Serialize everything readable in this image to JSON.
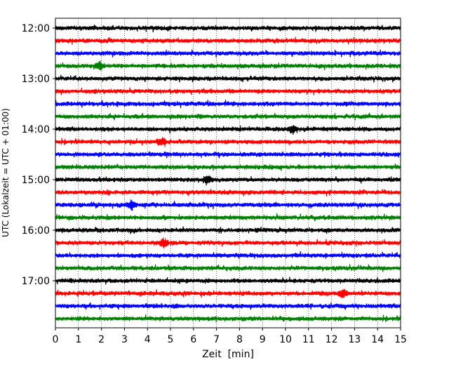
{
  "chart_data": {
    "type": "line",
    "chart_kind": "helicorder seismogram",
    "xlabel": "Zeit  [min]",
    "ylabel": "UTC (Lokalzeit = UTC + 01:00)",
    "xlim": [
      0,
      15
    ],
    "x_ticks": [
      0,
      1,
      2,
      3,
      4,
      5,
      6,
      7,
      8,
      9,
      10,
      11,
      12,
      13,
      14,
      15
    ],
    "x_tick_labels": [
      "0",
      "1",
      "2",
      "3",
      "4",
      "5",
      "6",
      "7",
      "8",
      "9",
      "10",
      "11",
      "12",
      "13",
      "14",
      "15"
    ],
    "y_tick_labels": [
      "12:00",
      "13:00",
      "14:00",
      "15:00",
      "16:00",
      "17:00"
    ],
    "y_tick_trace_index": [
      0,
      4,
      8,
      12,
      16,
      20
    ],
    "trace_start_time": "12:00",
    "trace_interval_minutes": 15,
    "trace_count": 24,
    "trace_colors": [
      "#000000",
      "#ff0000",
      "#0000ff",
      "#008000"
    ],
    "grid": "vertical dotted lines at each minute",
    "events": [
      {
        "trace": 3,
        "minute": 1.9
      },
      {
        "trace": 12,
        "minute": 6.6
      },
      {
        "trace": 8,
        "minute": 10.3
      },
      {
        "trace": 9,
        "minute": 4.6
      },
      {
        "trace": 14,
        "minute": 3.3
      },
      {
        "trace": 17,
        "minute": 4.7
      },
      {
        "trace": 21,
        "minute": 12.5
      }
    ]
  }
}
